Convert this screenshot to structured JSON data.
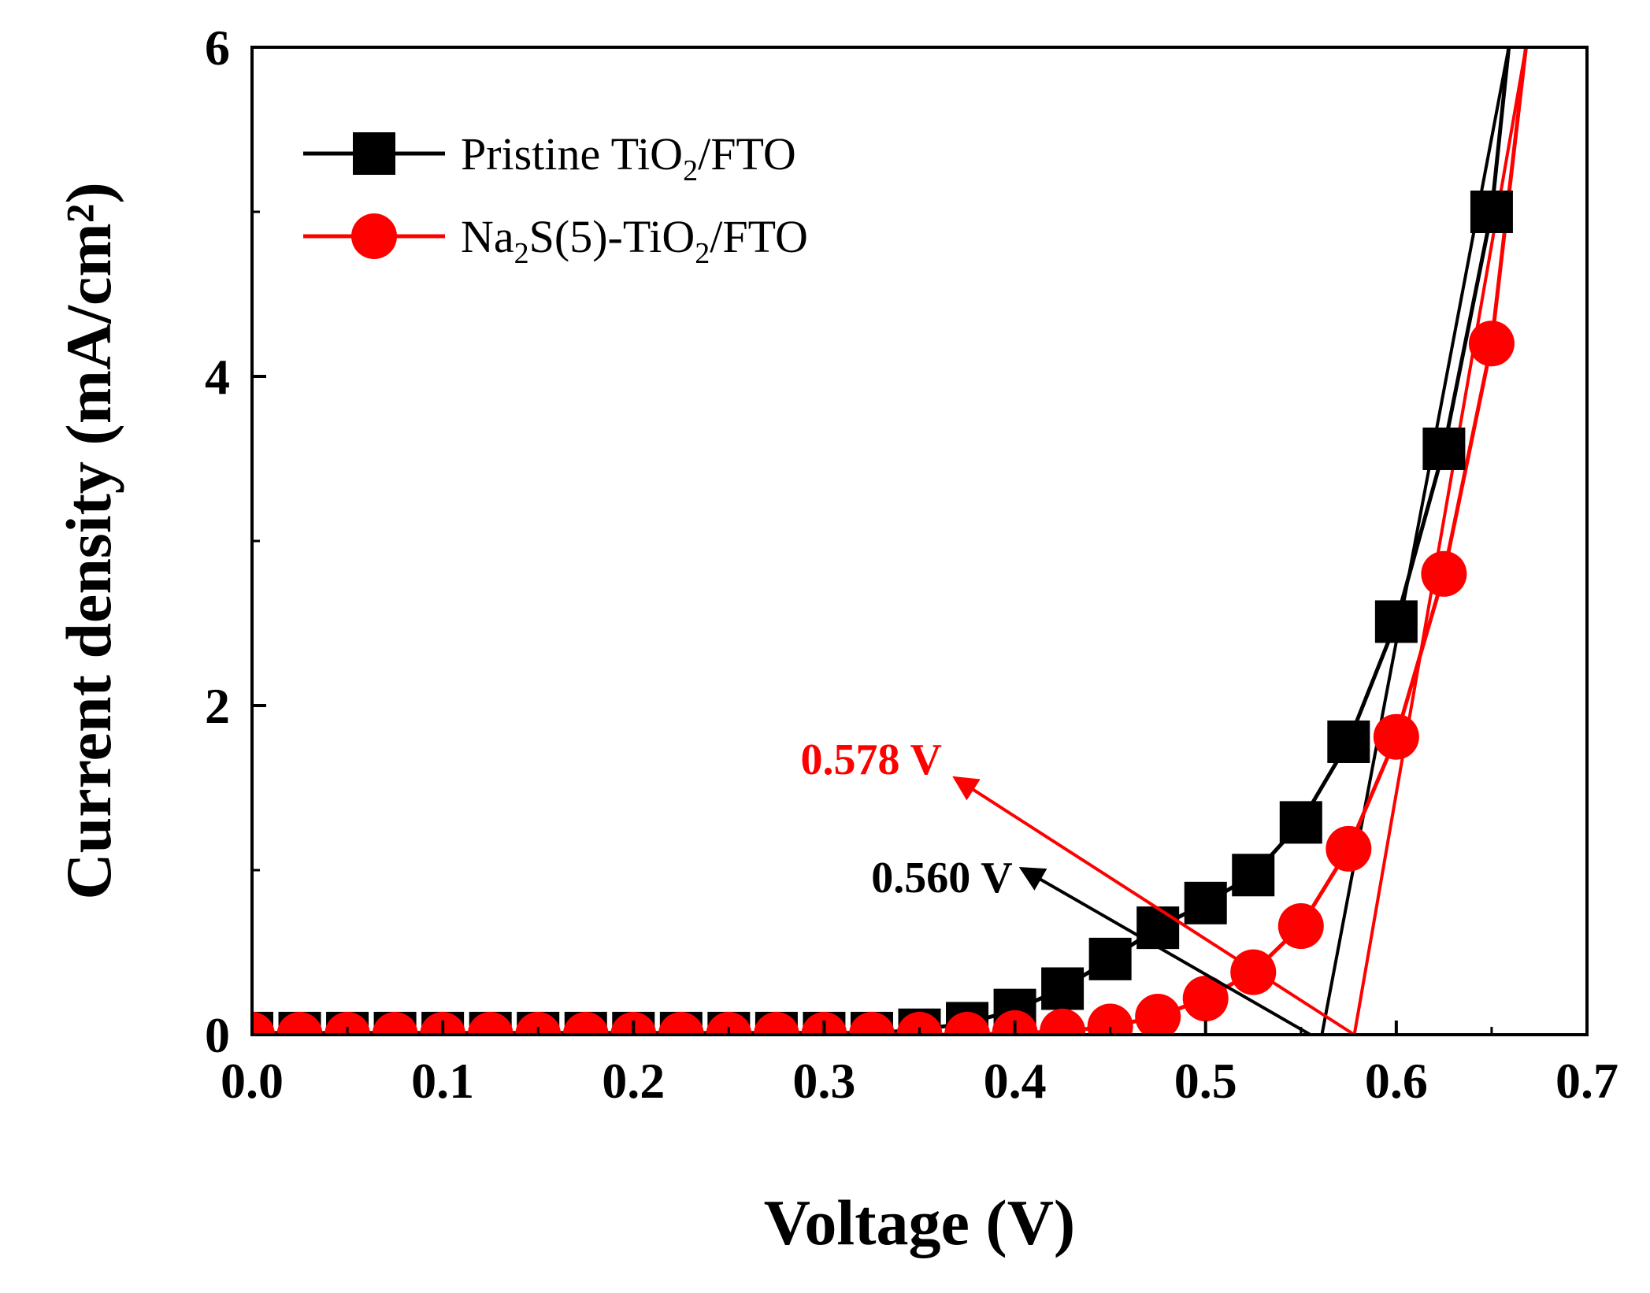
{
  "chart_data": {
    "type": "line",
    "title": "",
    "xlabel": "Voltage (V)",
    "ylabel": "Current density (mA/cm²)",
    "xlim": [
      0.0,
      0.7
    ],
    "ylim": [
      0,
      6
    ],
    "x_ticks": [
      "0.0",
      "0.1",
      "0.2",
      "0.3",
      "0.4",
      "0.5",
      "0.6",
      "0.7"
    ],
    "y_ticks": [
      "0",
      "2",
      "4",
      "6"
    ],
    "legend_position": "top-left",
    "series": [
      {
        "name": "Pristine TiO₂/FTO",
        "color": "#000000",
        "marker": "square",
        "x": [
          0.0,
          0.025,
          0.05,
          0.075,
          0.1,
          0.125,
          0.15,
          0.175,
          0.2,
          0.225,
          0.25,
          0.275,
          0.3,
          0.325,
          0.35,
          0.375,
          0.4,
          0.425,
          0.45,
          0.475,
          0.5,
          0.525,
          0.55,
          0.575,
          0.6,
          0.625,
          0.65
        ],
        "values": [
          0.01,
          0.01,
          0.01,
          0.01,
          0.01,
          0.01,
          0.01,
          0.01,
          0.01,
          0.01,
          0.01,
          0.01,
          0.01,
          0.01,
          0.03,
          0.07,
          0.15,
          0.28,
          0.46,
          0.65,
          0.8,
          0.97,
          1.29,
          1.78,
          2.51,
          3.56,
          5.0
        ],
        "line_extension": {
          "x": [
            0.659
          ],
          "values": [
            6.0
          ]
        }
      },
      {
        "name": "Na₂S(5)-TiO₂/FTO",
        "color": "#ff0000",
        "marker": "circle",
        "x": [
          0.0,
          0.025,
          0.05,
          0.075,
          0.1,
          0.125,
          0.15,
          0.175,
          0.2,
          0.225,
          0.25,
          0.275,
          0.3,
          0.325,
          0.35,
          0.375,
          0.4,
          0.425,
          0.45,
          0.475,
          0.5,
          0.525,
          0.55,
          0.575,
          0.6,
          0.625,
          0.65
        ],
        "values": [
          0.0,
          0.0,
          0.0,
          0.0,
          0.0,
          0.0,
          0.0,
          0.0,
          0.0,
          0.0,
          0.0,
          0.0,
          0.0,
          0.0,
          0.0,
          0.0,
          0.01,
          0.02,
          0.05,
          0.11,
          0.22,
          0.38,
          0.66,
          1.13,
          1.81,
          2.8,
          4.2
        ],
        "line_extension": {
          "x": [
            0.668
          ],
          "values": [
            6.0
          ]
        }
      }
    ],
    "tangent_lines": [
      {
        "color": "#000000",
        "x": [
          0.561,
          0.659
        ],
        "values": [
          0.0,
          6.0
        ]
      },
      {
        "color": "#ff0000",
        "x": [
          0.578,
          0.668
        ],
        "values": [
          0.0,
          6.0
        ]
      }
    ],
    "annotations": [
      {
        "text": "0.560 V",
        "color": "#000000",
        "arrow_from": [
          0.555,
          0.0
        ],
        "arrow_to": [
          0.405,
          1.0
        ]
      },
      {
        "text": "0.578 V",
        "color": "#ff0000",
        "arrow_from": [
          0.578,
          0.0
        ],
        "arrow_to": [
          0.37,
          1.55
        ]
      }
    ]
  }
}
